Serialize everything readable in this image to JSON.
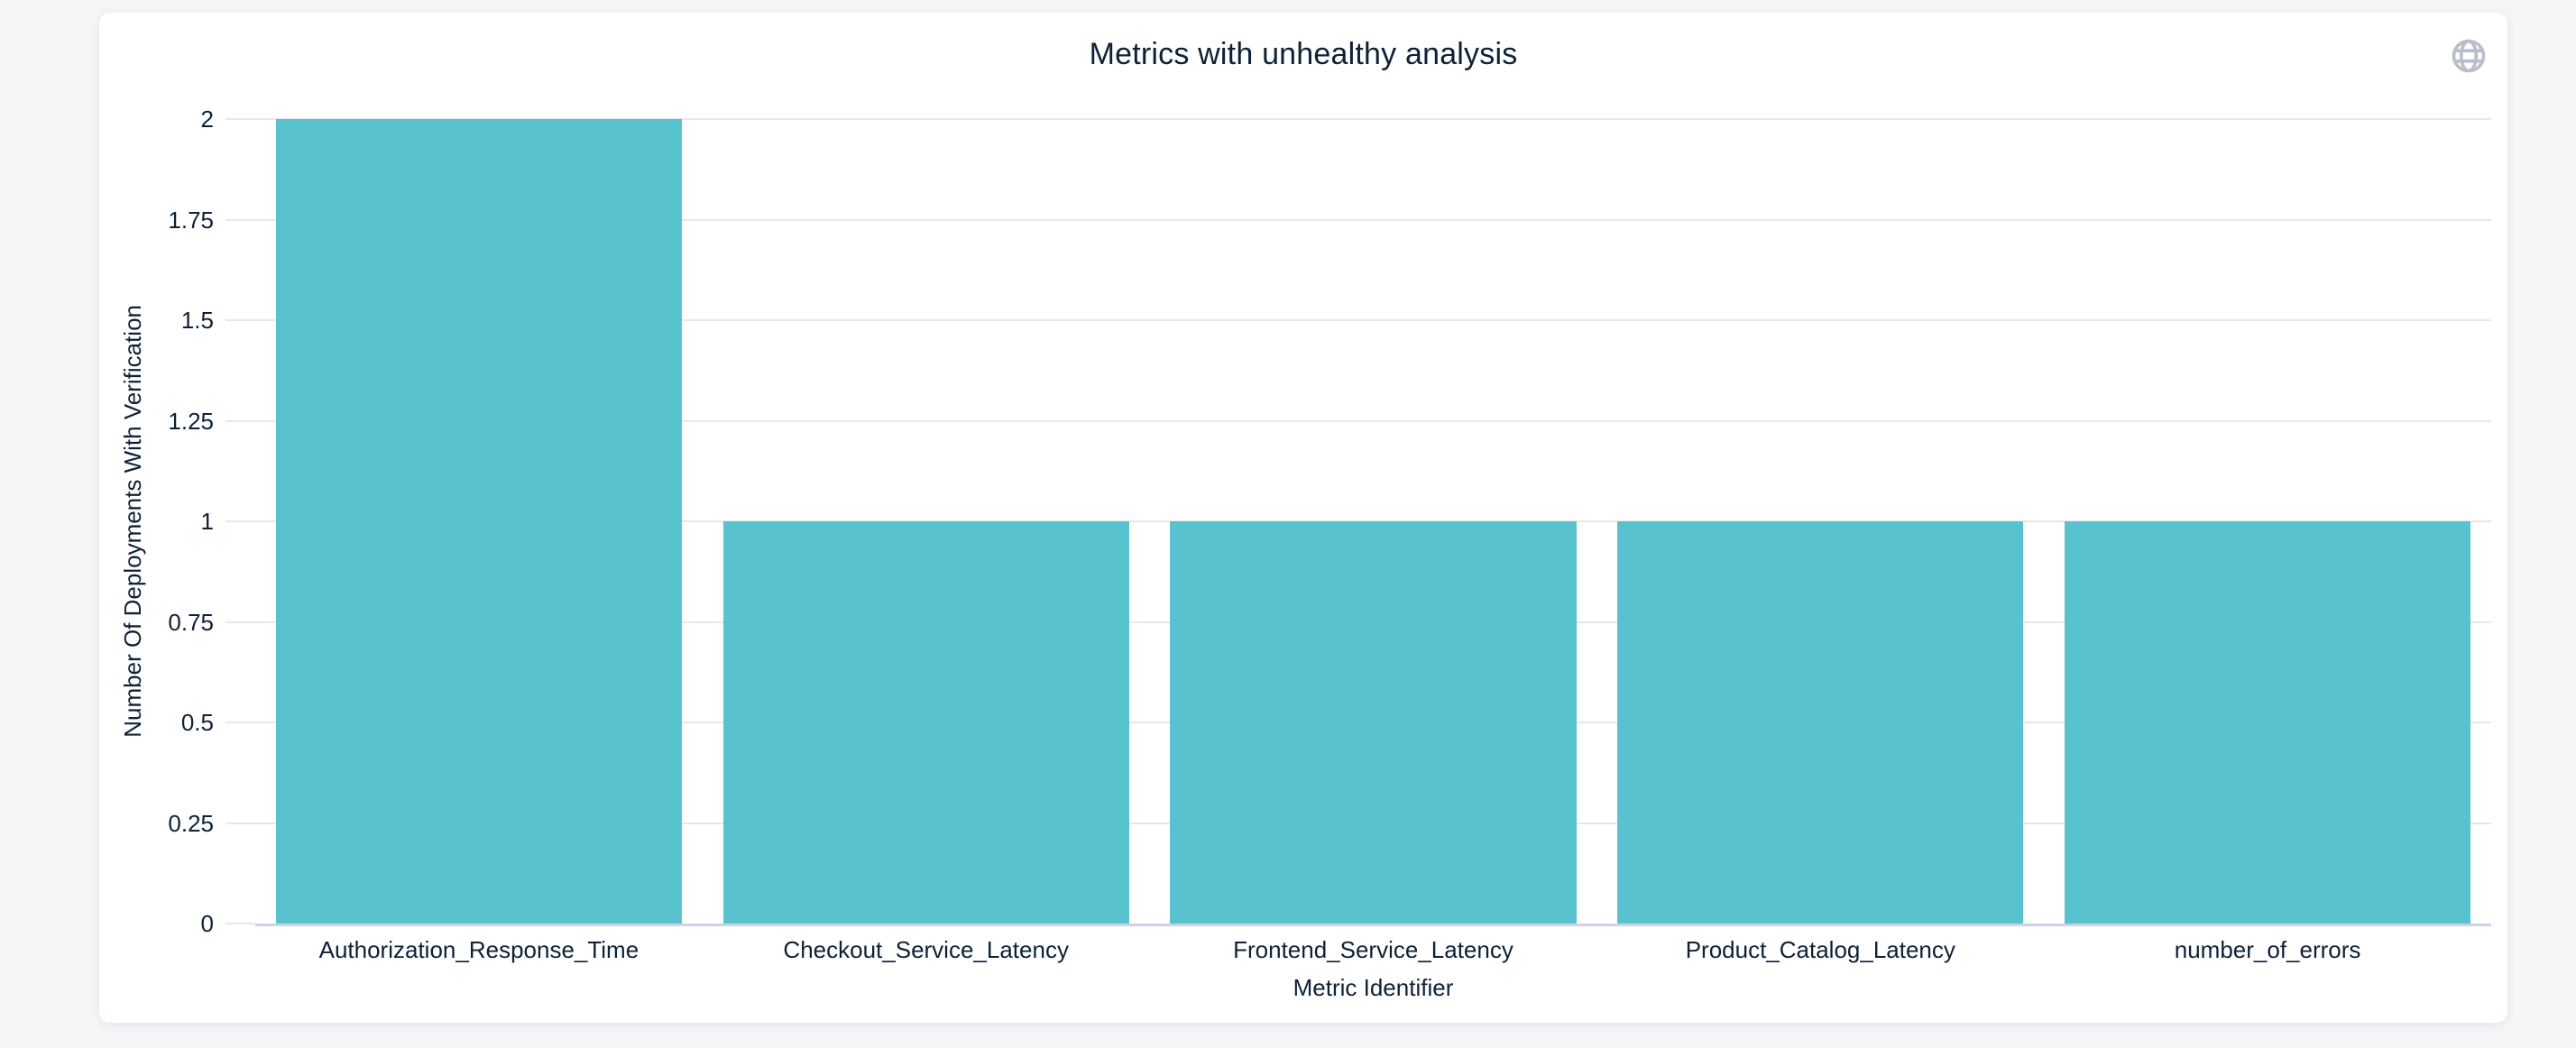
{
  "page": {
    "background": "#f4f6f8"
  },
  "card": {
    "background": "#ffffff"
  },
  "header": {
    "globe_icon": "globe"
  },
  "chart_data": {
    "type": "bar",
    "title": "Metrics with unhealthy analysis",
    "categories": [
      "Authorization_Response_Time",
      "Checkout_Service_Latency",
      "Frontend_Service_Latency",
      "Product_Catalog_Latency",
      "number_of_errors"
    ],
    "values": [
      2,
      1,
      1,
      1,
      1
    ],
    "xlabel": "Metric Identifier",
    "ylabel": "Number Of Deployments With Verification",
    "ylim": [
      0,
      2
    ],
    "yticks": [
      "0",
      "0.25",
      "0.5",
      "0.75",
      "1",
      "1.25",
      "1.5",
      "1.75",
      "2"
    ],
    "grid": true,
    "legend": "none",
    "colors": {
      "bar": "#58c3ce",
      "gridline": "#e8e8e8",
      "tick": "#e8e8e8",
      "axis_line": "#ccd3e5",
      "text": "#0d2137",
      "globe_icon": "#b9bfc9"
    }
  }
}
